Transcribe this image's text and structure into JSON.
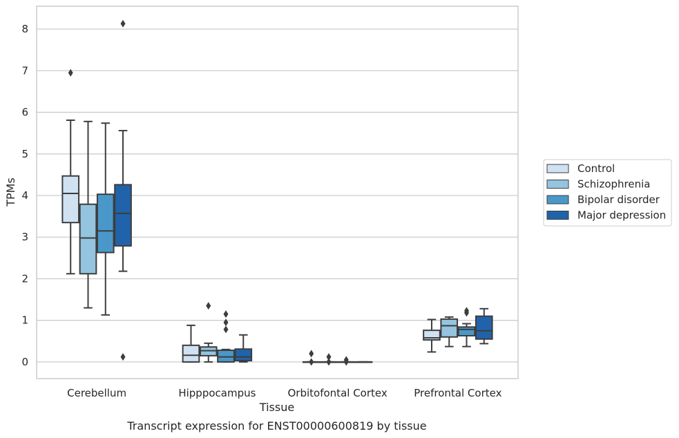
{
  "caption": "Transcript expression for ENST00000600819 by tissue",
  "chart_data": {
    "type": "box",
    "xlabel": "Tissue",
    "ylabel": "TPMs",
    "categories": [
      "Cerebellum",
      "Hipppocampus",
      "Orbitofontal Cortex",
      "Prefrontal Cortex"
    ],
    "ylim": [
      -0.4,
      8.55
    ],
    "yticks": [
      "0",
      "1",
      "2",
      "3",
      "4",
      "5",
      "6",
      "7",
      "8"
    ],
    "grid": "horizontal",
    "legend_position": "right",
    "series": [
      {
        "name": "Control",
        "color": "#d0e1f2",
        "boxes": [
          {
            "whislo": 2.12,
            "q1": 3.35,
            "med": 4.05,
            "q3": 4.47,
            "whishi": 5.81,
            "fliers": [
              6.95
            ]
          },
          {
            "whislo": 0.0,
            "q1": 0.0,
            "med": 0.16,
            "q3": 0.4,
            "whishi": 0.88,
            "fliers": []
          },
          {
            "whislo": 0.0,
            "q1": 0.0,
            "med": 0.0,
            "q3": 0.0,
            "whishi": 0.0,
            "fliers": [
              0.0,
              0.2
            ]
          },
          {
            "whislo": 0.24,
            "q1": 0.53,
            "med": 0.58,
            "q3": 0.76,
            "whishi": 1.02,
            "fliers": []
          }
        ]
      },
      {
        "name": "Schizophrenia",
        "color": "#94c4df",
        "boxes": [
          {
            "whislo": 1.3,
            "q1": 2.12,
            "med": 2.98,
            "q3": 3.79,
            "whishi": 5.78,
            "fliers": []
          },
          {
            "whislo": 0.0,
            "q1": 0.15,
            "med": 0.27,
            "q3": 0.36,
            "whishi": 0.45,
            "fliers": [
              1.35
            ]
          },
          {
            "whislo": 0.0,
            "q1": 0.0,
            "med": 0.0,
            "q3": 0.0,
            "whishi": 0.0,
            "fliers": [
              0.0,
              0.12
            ]
          },
          {
            "whislo": 0.37,
            "q1": 0.6,
            "med": 0.87,
            "q3": 1.03,
            "whishi": 1.08,
            "fliers": []
          }
        ]
      },
      {
        "name": "Bipolar disorder",
        "color": "#4a98c9",
        "boxes": [
          {
            "whislo": 1.13,
            "q1": 2.63,
            "med": 3.15,
            "q3": 4.03,
            "whishi": 5.74,
            "fliers": []
          },
          {
            "whislo": 0.0,
            "q1": 0.0,
            "med": 0.12,
            "q3": 0.28,
            "whishi": 0.3,
            "fliers": [
              0.78,
              0.95,
              1.15
            ]
          },
          {
            "whislo": 0.0,
            "q1": 0.0,
            "med": 0.0,
            "q3": 0.0,
            "whishi": 0.0,
            "fliers": [
              0.0,
              0.05
            ]
          },
          {
            "whislo": 0.37,
            "q1": 0.63,
            "med": 0.78,
            "q3": 0.84,
            "whishi": 0.92,
            "fliers": [
              1.18,
              1.23
            ]
          }
        ]
      },
      {
        "name": "Major depression",
        "color": "#2163aa",
        "boxes": [
          {
            "whislo": 2.18,
            "q1": 2.79,
            "med": 3.57,
            "q3": 4.26,
            "whishi": 5.56,
            "fliers": [
              0.12,
              8.13
            ]
          },
          {
            "whislo": 0.0,
            "q1": 0.03,
            "med": 0.12,
            "q3": 0.31,
            "whishi": 0.65,
            "fliers": []
          },
          {
            "whislo": 0.0,
            "q1": 0.0,
            "med": 0.0,
            "q3": 0.0,
            "whishi": 0.0,
            "fliers": []
          },
          {
            "whislo": 0.44,
            "q1": 0.55,
            "med": 0.75,
            "q3": 1.1,
            "whishi": 1.28,
            "fliers": []
          }
        ]
      }
    ]
  }
}
